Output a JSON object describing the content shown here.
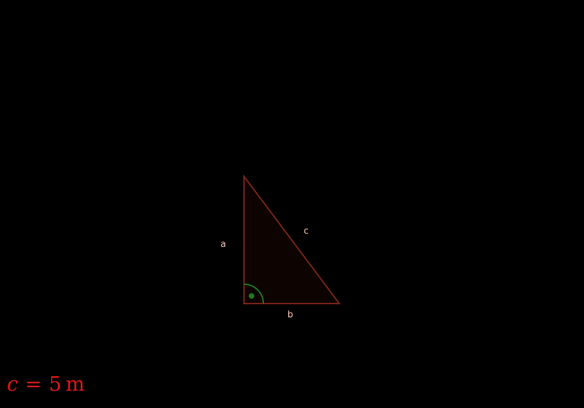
{
  "diagram": {
    "side_labels": {
      "a": "a",
      "b": "b",
      "c": "c"
    },
    "right_angle": true
  },
  "formula": {
    "variable": "c",
    "equals": "=",
    "value": "5",
    "unit": "m"
  },
  "colors": {
    "background": "#000000",
    "triangle_stroke": "#7a2515",
    "triangle_fill": "#0d0402",
    "label": "#f5c9b8",
    "angle_marker": "#1f7a1f",
    "formula": "#e01818"
  }
}
